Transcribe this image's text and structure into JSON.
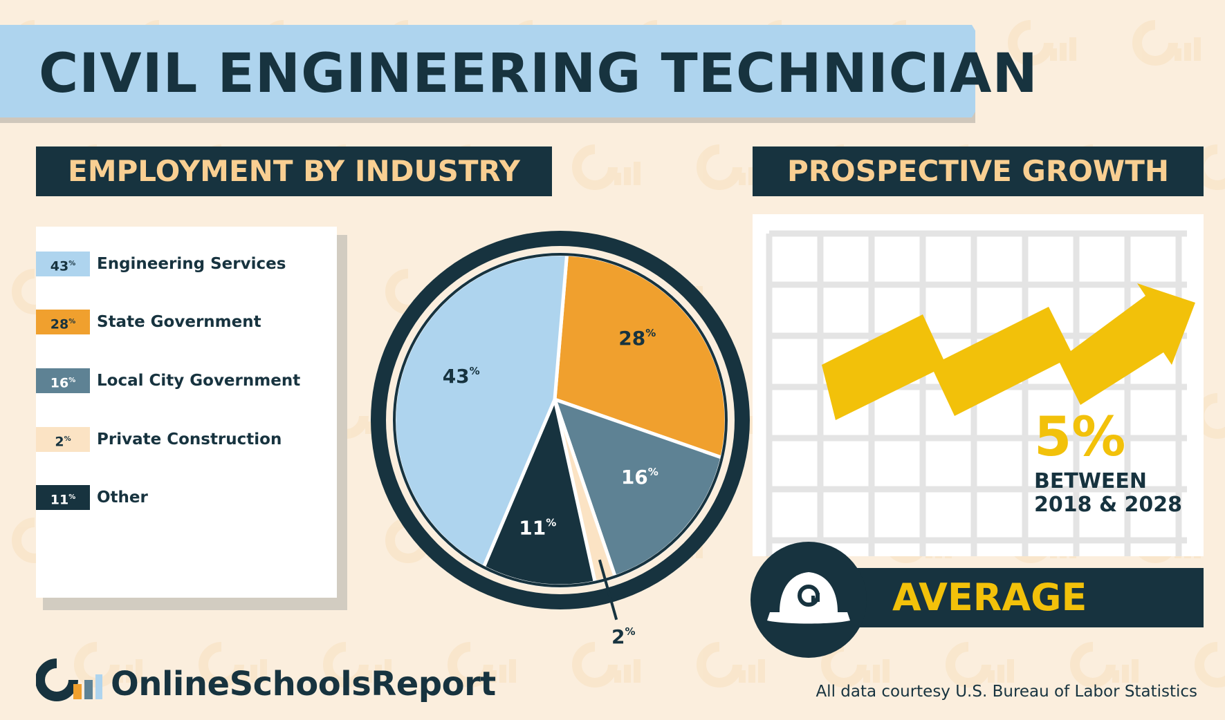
{
  "title": "CIVIL ENGINEERING TECHNICIAN",
  "sections": {
    "employment_header": "EMPLOYMENT BY INDUSTRY",
    "growth_header": "PROSPECTIVE GROWTH"
  },
  "chart_data": {
    "type": "pie",
    "title": "EMPLOYMENT BY INDUSTRY",
    "categories": [
      "Engineering Services",
      "State Government",
      "Local City Government",
      "Private Construction",
      "Other"
    ],
    "values": [
      43,
      28,
      16,
      2,
      11
    ],
    "value_labels": [
      "43",
      "28",
      "16",
      "2",
      "11"
    ],
    "unit_label": "%",
    "colors": [
      "#aed4ee",
      "#f0a02e",
      "#5e8294",
      "#fbe3c4",
      "#17333f"
    ],
    "label_colors": [
      "#17333f",
      "#17333f",
      "#ffffff",
      "#17333f",
      "#ffffff"
    ],
    "legend_position": "left"
  },
  "growth": {
    "percent": "5%",
    "period_line1": "BETWEEN",
    "period_line2": "2018 & 2028",
    "rating": "AVERAGE"
  },
  "icons": {
    "helmet": "hard-hat-icon",
    "brand": "online-schools-report-logo",
    "arrow": "growth-arrow-icon"
  },
  "footer": {
    "brand_name": "OnlineSchoolsReport",
    "source": "All data courtesy U.S. Bureau of Labor Statistics"
  },
  "colors": {
    "navy": "#17333f",
    "light_blue": "#aed4ee",
    "orange": "#f0a02e",
    "slate": "#5e8294",
    "cream": "#fbe3c4",
    "yellow": "#f2c10a",
    "header_text": "#f9cf92"
  }
}
